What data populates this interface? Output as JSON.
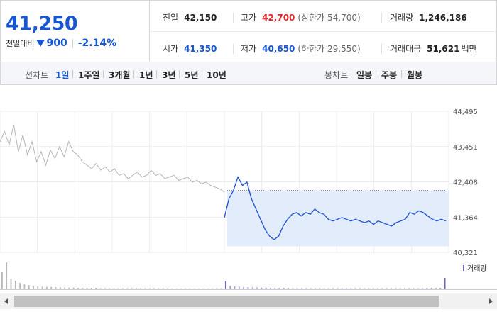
{
  "price": {
    "current": "41,250",
    "change_label": "전일대비",
    "change_abs": "900",
    "change_pct": "-2.14%"
  },
  "stats": {
    "prev_close_label": "전일",
    "prev_close": "42,150",
    "high_label": "고가",
    "high": "42,700",
    "upper_limit": "(상한가 54,700)",
    "volume_label": "거래량",
    "volume": "1,246,186",
    "open_label": "시가",
    "open": "41,350",
    "low_label": "저가",
    "low": "40,650",
    "lower_limit": "(하한가 29,550)",
    "trade_value_label": "거래대금",
    "trade_value": "51,621",
    "trade_value_unit": "백만"
  },
  "periodbar": {
    "line_chart_label": "선차트",
    "periods": [
      "1일",
      "1주일",
      "3개월",
      "1년",
      "3년",
      "5년",
      "10년"
    ],
    "active_period": "1일",
    "candle_label": "봉차트",
    "candles": [
      "일봉",
      "주봉",
      "월봉"
    ]
  },
  "chart_data": {
    "type": "line",
    "y_ticks": [
      "44,495",
      "43,451",
      "42,408",
      "41,364",
      "40,321"
    ],
    "y_tick_values": [
      44495,
      43451,
      42408,
      41364,
      40321
    ],
    "ylim": [
      40321,
      44495
    ],
    "reference_line": 42150,
    "volume_legend": "거래량",
    "series": [
      {
        "values": [
          43600,
          43900,
          43500,
          44100,
          43300,
          43800,
          43200,
          43600,
          43000,
          43300,
          42900,
          43350,
          43100,
          43450,
          43150,
          43600,
          43300,
          43200,
          43000,
          42900,
          42800,
          42950,
          42750,
          42850,
          42700,
          42800,
          42600,
          42650,
          42500,
          42600,
          42700,
          42550,
          42600,
          42750,
          42600,
          42650,
          42500,
          42550,
          42600,
          42450,
          42500,
          42550,
          42400,
          42450,
          42350,
          42400,
          42300,
          42250,
          42200,
          42100
        ],
        "color": "#b4b4b4"
      },
      {
        "values": [
          41350,
          41900,
          42150,
          42550,
          42300,
          42400,
          41900,
          41600,
          41300,
          41000,
          40800,
          40700,
          40800,
          41100,
          41300,
          41450,
          41500,
          41400,
          41500,
          41450,
          41600,
          41500,
          41450,
          41300,
          41250,
          41300,
          41350,
          41300,
          41250,
          41300,
          41250,
          41200,
          41250,
          41150,
          41250,
          41200,
          41150,
          41100,
          41200,
          41250,
          41300,
          41500,
          41450,
          41550,
          41500,
          41400,
          41300,
          41250,
          41300,
          41250
        ],
        "color": "#1a4fd1"
      }
    ],
    "volume": [
      60,
      95,
      38,
      30,
      22,
      18,
      15,
      12,
      10,
      9,
      8,
      8,
      7,
      7,
      6,
      6,
      6,
      5,
      5,
      5,
      5,
      5,
      4,
      4,
      4,
      4,
      4,
      4,
      4,
      4,
      5,
      4,
      4,
      4,
      4,
      4,
      4,
      4,
      3,
      3,
      3,
      3,
      3,
      3,
      3,
      3,
      3,
      3,
      4,
      4,
      28,
      12,
      10,
      9,
      8,
      7,
      7,
      6,
      6,
      6,
      5,
      5,
      5,
      5,
      5,
      4,
      4,
      4,
      4,
      4,
      4,
      4,
      4,
      4,
      4,
      4,
      4,
      4,
      4,
      4,
      4,
      4,
      4,
      4,
      4,
      4,
      4,
      4,
      4,
      4,
      4,
      4,
      4,
      4,
      4,
      5,
      5,
      5,
      5,
      40
    ]
  }
}
